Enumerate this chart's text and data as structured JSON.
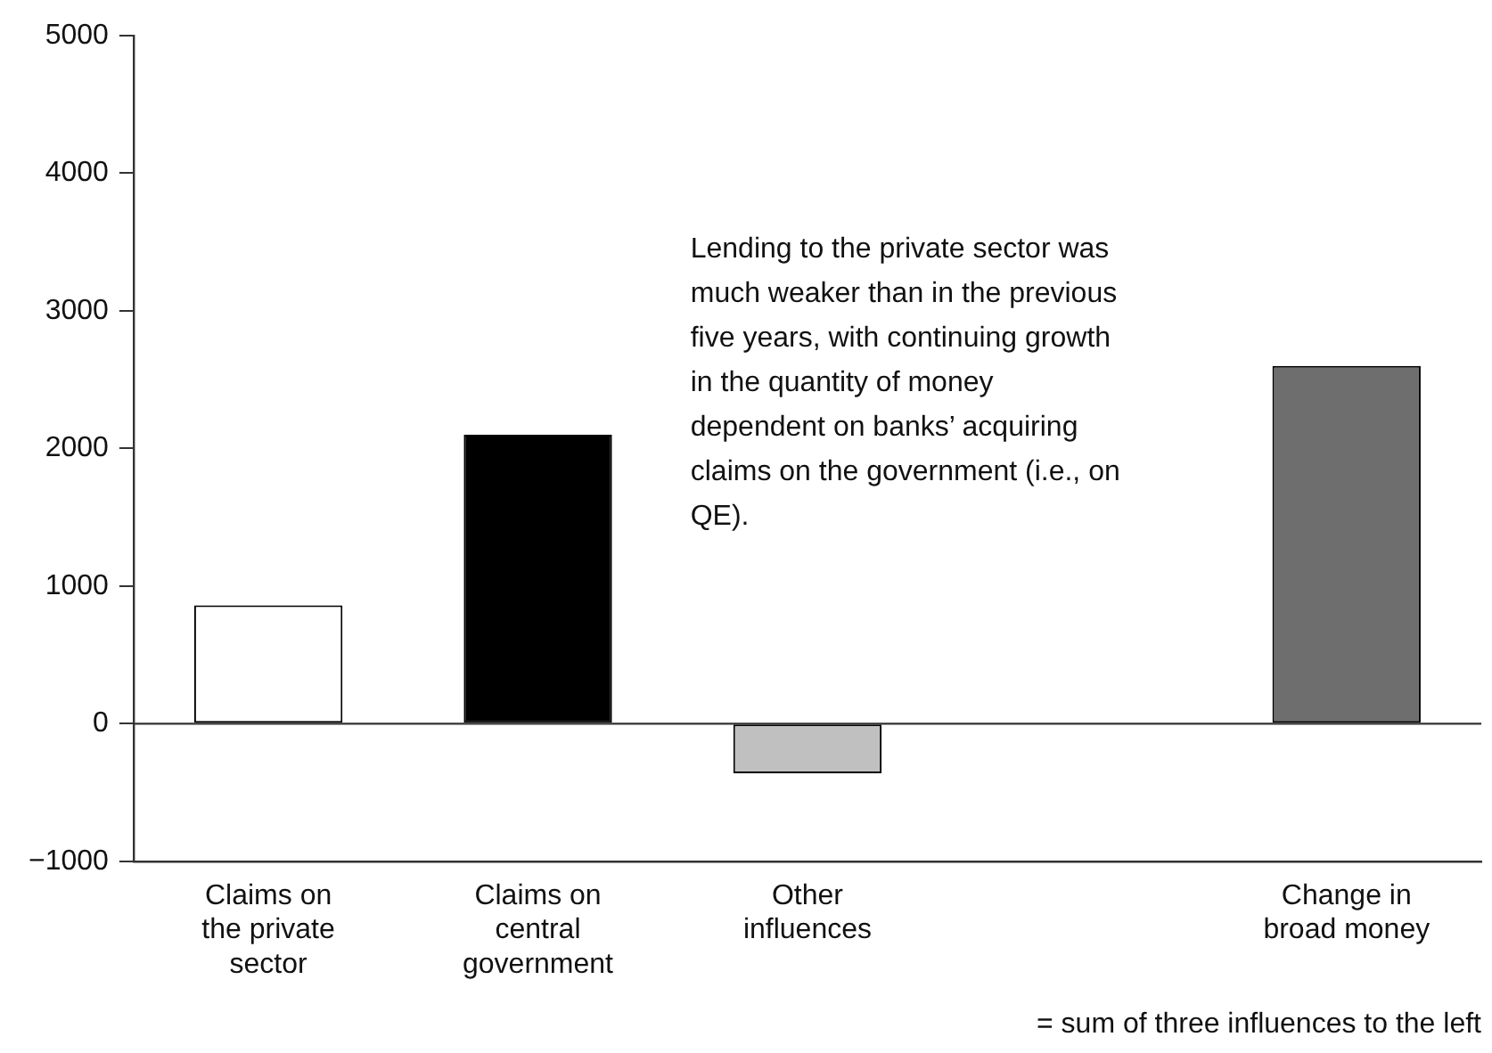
{
  "chart_data": {
    "type": "bar",
    "categories": [
      "Claims on the private sector",
      "Claims on central government",
      "Other influences",
      null,
      "Change in broad money"
    ],
    "values": [
      860,
      2100,
      -360,
      null,
      2600
    ],
    "colors": [
      "#ffffff",
      "#000000",
      "#c0c0c0",
      "#ffffff",
      "#6e6e6e"
    ],
    "ylim": [
      -1000,
      5000
    ],
    "yticks": [
      {
        "value": -1000,
        "label": "−1000"
      },
      0,
      1000,
      2000,
      3000,
      4000,
      5000
    ],
    "ref_lines": [
      {
        "axis": "y",
        "value": 0,
        "color": "#333333"
      }
    ],
    "grid": false,
    "legend": false,
    "annotations": [
      "Lending to the private sector was much weaker than in the previous five years, with continuing growth in the quantity of money dependent on banks’ acquiring claims on the government (i.e., on QE).",
      "= sum of three influences to the left"
    ]
  }
}
